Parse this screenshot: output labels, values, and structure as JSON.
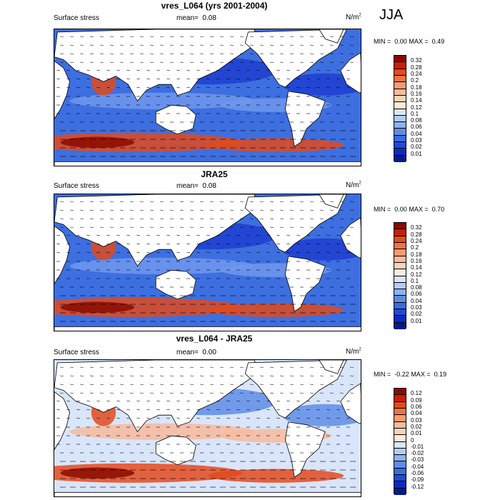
{
  "season": "JJA",
  "panels": [
    {
      "title": "vres_L064 (yrs 2001-2004)",
      "left_label": "Surface stress",
      "mean_label": "mean=",
      "mean_value": "0.08",
      "unit": "N/m",
      "unit_exp": "2",
      "min_label": "MIN =",
      "min_value": "0.00",
      "max_label": "MAX =",
      "max_value": "0.49",
      "colorbar_ticks": [
        "0.32",
        "0.28",
        "0.24",
        "0.2",
        "0.18",
        "0.16",
        "0.14",
        "0.12",
        "0.1",
        "0.08",
        "0.06",
        "0.04",
        "0.03",
        "0.02",
        "0.01"
      ],
      "colorbar_colors": [
        "#8b0a00",
        "#c81e04",
        "#e34a1d",
        "#f27347",
        "#f59a73",
        "#f7bb9c",
        "#fad4b9",
        "#fcebd9",
        "#d8e6fb",
        "#b3cdf5",
        "#8bb1ef",
        "#5f8de6",
        "#3a6ce0",
        "#1f4ad4",
        "#0b2bbf",
        "#061a8a"
      ],
      "field_colors": {
        "background": "#3d6fe0",
        "weak": "#6f98ec",
        "strong": "#1d3fd0",
        "high": "#e04a1c",
        "peak": "#8b0a00"
      }
    },
    {
      "title": "JRA25",
      "left_label": "Surface stress",
      "mean_label": "mean=",
      "mean_value": "0.08",
      "unit": "N/m",
      "unit_exp": "2",
      "min_label": "MIN =",
      "min_value": "0.00",
      "max_label": "MAX =",
      "max_value": "0.70",
      "colorbar_ticks": [
        "0.32",
        "0.28",
        "0.24",
        "0.2",
        "0.18",
        "0.16",
        "0.14",
        "0.12",
        "0.1",
        "0.08",
        "0.06",
        "0.04",
        "0.03",
        "0.02",
        "0.01"
      ],
      "colorbar_colors": [
        "#8b0a00",
        "#c81e04",
        "#e34a1d",
        "#f27347",
        "#f59a73",
        "#f7bb9c",
        "#fad4b9",
        "#fcebd9",
        "#d8e6fb",
        "#b3cdf5",
        "#8bb1ef",
        "#5f8de6",
        "#3a6ce0",
        "#1f4ad4",
        "#0b2bbf",
        "#061a8a"
      ],
      "field_colors": {
        "background": "#3d6fe0",
        "weak": "#6f98ec",
        "strong": "#1d3fd0",
        "high": "#e04a1c",
        "peak": "#8b0a00"
      }
    },
    {
      "title": "vres_L064 - JRA25",
      "left_label": "Surface stress",
      "mean_label": "mean=",
      "mean_value": "0.00",
      "unit": "N/m",
      "unit_exp": "2",
      "min_label": "MIN =",
      "min_value": "-0.22",
      "max_label": "MAX =",
      "max_value": "0.19",
      "colorbar_ticks": [
        "0.12",
        "0.09",
        "0.06",
        "0.04",
        "0.03",
        "0.02",
        "0.01",
        "0",
        "-0.01",
        "-0.02",
        "-0.03",
        "-0.04",
        "-0.06",
        "-0.09",
        "-0.12"
      ],
      "colorbar_colors": [
        "#8b0a00",
        "#c81e04",
        "#e34a1d",
        "#f27347",
        "#f59a73",
        "#f7bb9c",
        "#fad4b9",
        "#fcebd9",
        "#d8e6fb",
        "#b3cdf5",
        "#8bb1ef",
        "#5f8de6",
        "#3a6ce0",
        "#1f4ad4",
        "#0b2bbf",
        "#061a8a"
      ],
      "field_colors": {
        "background": "#d9e5fa",
        "weak": "#f7bb9c",
        "strong": "#5f8de6",
        "high": "#e34a1d",
        "peak": "#8b0a00"
      }
    }
  ]
}
